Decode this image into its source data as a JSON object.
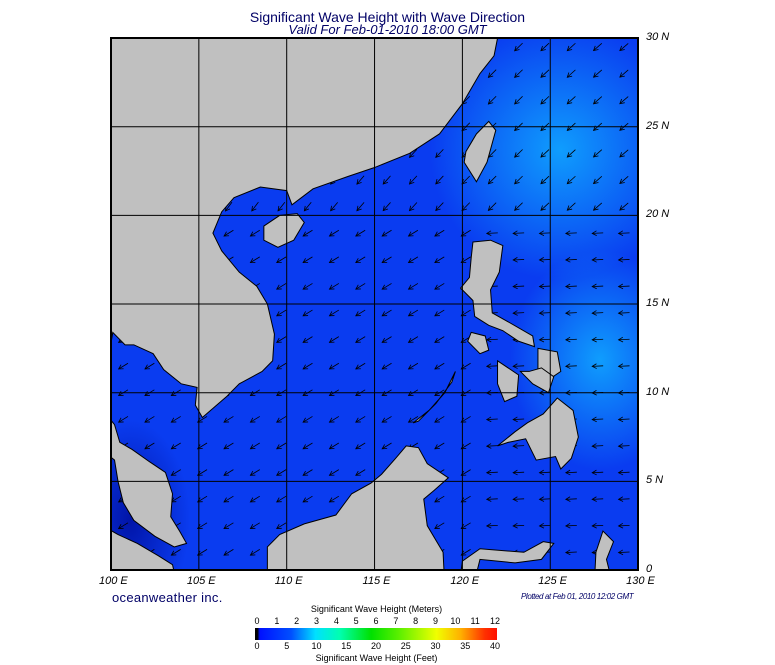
{
  "header": {
    "title": "Significant Wave Height with Wave Direction",
    "subtitle": "Valid For Feb-01-2010 18:00 GMT"
  },
  "axes": {
    "lon_labels": [
      "100 E",
      "105 E",
      "110 E",
      "115 E",
      "120 E",
      "125 E",
      "130 E"
    ],
    "lat_labels": [
      "0",
      "5 N",
      "10 N",
      "15 N",
      "20 N",
      "25 N",
      "30 N"
    ],
    "lon_range": [
      100,
      130
    ],
    "lat_range": [
      0,
      30
    ]
  },
  "footer": {
    "brand": "oceanweather inc.",
    "plotted": "Plotted at Feb 01, 2010 12:02 GMT"
  },
  "colorbar": {
    "title_top": "Significant Wave Height (Meters)",
    "title_bottom": "Significant Wave Height (Feet)",
    "meters": [
      "0",
      "1",
      "2",
      "3",
      "4",
      "5",
      "6",
      "7",
      "8",
      "9",
      "10",
      "11",
      "12"
    ],
    "feet": [
      "0",
      "5",
      "10",
      "15",
      "20",
      "25",
      "30",
      "35",
      "40"
    ]
  },
  "colors": {
    "land": "#c0c0c0",
    "ocean": "#0a3cf0",
    "ocean_light": "#0090ff",
    "grid": "#000000",
    "title": "#000066"
  }
}
